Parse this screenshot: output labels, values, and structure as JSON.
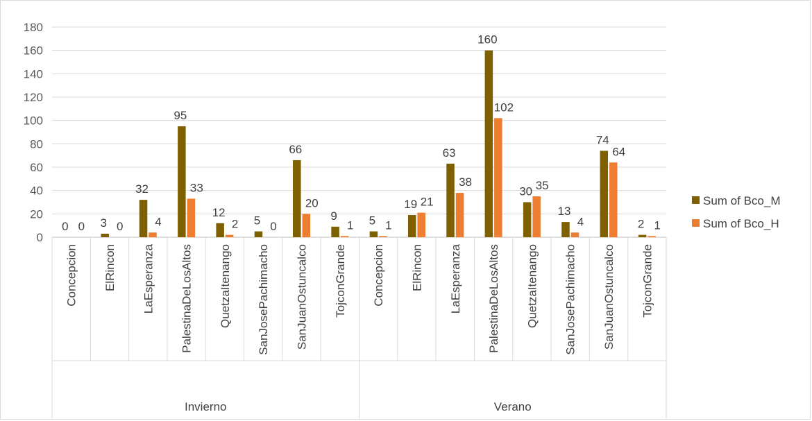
{
  "chart_data": {
    "type": "bar",
    "title": "",
    "xlabel": "",
    "ylabel": "",
    "ylim": [
      0,
      180
    ],
    "yticks": [
      "0",
      "20",
      "40",
      "60",
      "80",
      "100",
      "120",
      "140",
      "160",
      "180"
    ],
    "grid": "horizontal",
    "legend_position": "right",
    "groups": [
      {
        "name": "Invierno",
        "categories": [
          "Concepcion",
          "ElRincon",
          "LaEsperanza",
          "PalestinaDeLosAltos",
          "QuetzaItenango",
          "SanJosePachimacho",
          "SanJuanOstuncalco",
          "TojconGrande"
        ]
      },
      {
        "name": "Verano",
        "categories": [
          "Concepcion",
          "ElRincon",
          "LaEsperanza",
          "PalestinaDeLosAltos",
          "QuetzaItenango",
          "SanJosePachimacho",
          "SanJuanOstuncalco",
          "TojconGrande"
        ]
      }
    ],
    "series": [
      {
        "name": "Sum of Bco_M",
        "color": "#7f6000",
        "values": [
          0,
          3,
          32,
          95,
          12,
          5,
          66,
          9,
          5,
          19,
          63,
          160,
          30,
          13,
          74,
          2
        ]
      },
      {
        "name": "Sum of Bco_H",
        "color": "#ed7d31",
        "values": [
          0,
          0,
          4,
          33,
          2,
          0,
          20,
          1,
          1,
          21,
          38,
          102,
          35,
          4,
          64,
          1
        ]
      }
    ]
  }
}
